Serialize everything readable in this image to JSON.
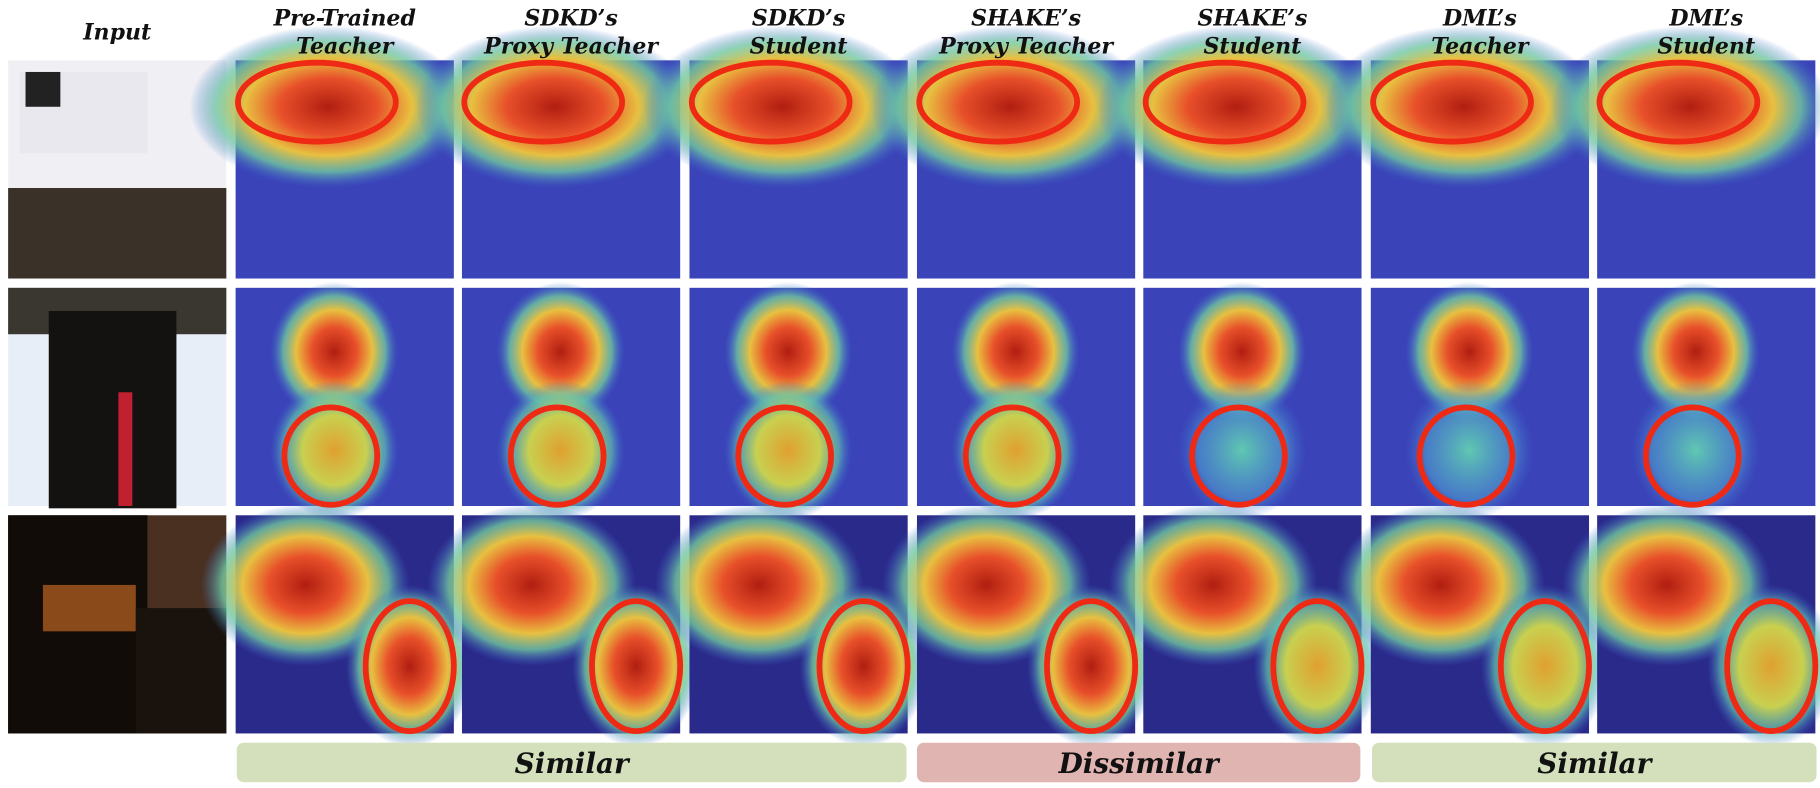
{
  "input_label": "Input",
  "columns": [
    {
      "lines": [
        "Pre-Trained",
        "Teacher"
      ]
    },
    {
      "lines": [
        "SDKD’s",
        "Proxy Teacher"
      ]
    },
    {
      "lines": [
        "SDKD’s",
        "Student"
      ]
    },
    {
      "lines": [
        "SHAKE’s",
        "Proxy Teacher"
      ]
    },
    {
      "lines": [
        "SHAKE’s",
        "Student"
      ]
    },
    {
      "lines": [
        "DML’s",
        "Teacher"
      ]
    },
    {
      "lines": [
        "DML’s",
        "Student"
      ]
    }
  ],
  "groups": [
    "Similar",
    "Dissimilar",
    "Similar"
  ]
}
